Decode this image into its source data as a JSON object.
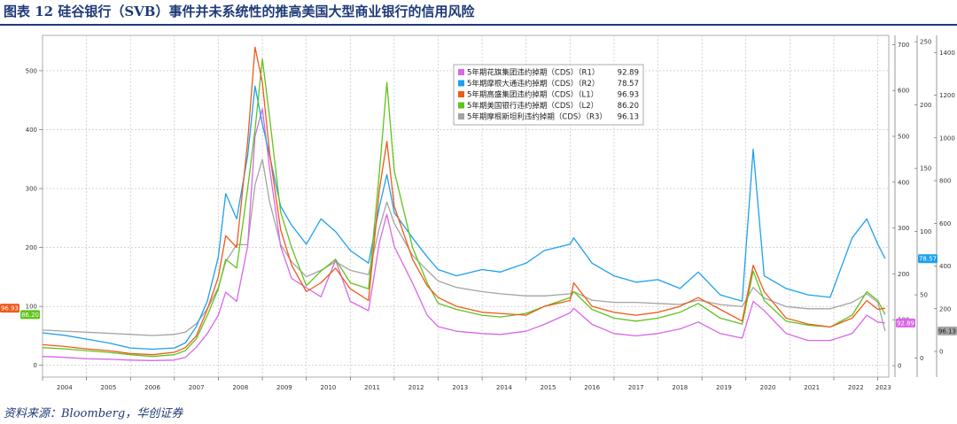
{
  "title": "图表 12  硅谷银行（SVB）事件并未系统性的推高美国大型商业银行的信用风险",
  "source": "资料来源：Bloomberg，华创证券",
  "chart_data": {
    "type": "line",
    "x": [
      "2004-01",
      "2004-07",
      "2005-01",
      "2005-07",
      "2006-01",
      "2006-07",
      "2007-01",
      "2007-04",
      "2007-07",
      "2007-10",
      "2008-01",
      "2008-03",
      "2008-06",
      "2008-09",
      "2008-11",
      "2009-01",
      "2009-03",
      "2009-06",
      "2009-09",
      "2010-01",
      "2010-05",
      "2010-09",
      "2011-01",
      "2011-06",
      "2011-09",
      "2011-11",
      "2012-01",
      "2012-06",
      "2012-10",
      "2013-01",
      "2013-06",
      "2014-01",
      "2014-06",
      "2015-01",
      "2015-06",
      "2016-01",
      "2016-02",
      "2016-07",
      "2017-01",
      "2017-07",
      "2018-01",
      "2018-07",
      "2018-12",
      "2019-06",
      "2019-12",
      "2020-03",
      "2020-06",
      "2020-12",
      "2021-06",
      "2021-12",
      "2022-06",
      "2022-10",
      "2023-01",
      "2023-03"
    ],
    "series": [
      {
        "name": "5年期花旗集团违约掉期（CDS）（R1）",
        "last": "92.89",
        "axis": "R1",
        "color": "#d966e8",
        "values": [
          20,
          18,
          15,
          14,
          12,
          11,
          12,
          18,
          40,
          70,
          110,
          160,
          140,
          260,
          500,
          560,
          430,
          260,
          190,
          170,
          150,
          230,
          140,
          120,
          270,
          330,
          260,
          180,
          110,
          85,
          75,
          70,
          68,
          75,
          90,
          115,
          125,
          90,
          70,
          65,
          70,
          80,
          95,
          70,
          60,
          140,
          120,
          70,
          55,
          55,
          70,
          110,
          95,
          92.89
        ]
      },
      {
        "name": "5年期摩根大通违约掉期（CDS）（R2）",
        "last": "78.57",
        "axis": "R2",
        "color": "#1ea0ee",
        "values": [
          20,
          18,
          15,
          12,
          8,
          7,
          8,
          12,
          25,
          45,
          80,
          130,
          110,
          160,
          215,
          185,
          160,
          120,
          105,
          90,
          110,
          100,
          85,
          75,
          120,
          145,
          115,
          95,
          80,
          70,
          65,
          70,
          68,
          75,
          85,
          90,
          95,
          75,
          65,
          60,
          62,
          55,
          68,
          50,
          45,
          165,
          65,
          55,
          50,
          48,
          95,
          110,
          90,
          78.57
        ]
      },
      {
        "name": "5年期高盛集团违约掉期（CDS）（L1）",
        "last": "96.93",
        "axis": "L1",
        "color": "#ee5a1a",
        "values": [
          35,
          32,
          28,
          25,
          20,
          18,
          22,
          30,
          50,
          95,
          150,
          220,
          200,
          380,
          540,
          480,
          360,
          230,
          170,
          125,
          140,
          165,
          130,
          110,
          300,
          380,
          270,
          180,
          135,
          115,
          100,
          90,
          88,
          85,
          100,
          110,
          140,
          100,
          90,
          85,
          90,
          100,
          115,
          95,
          75,
          170,
          125,
          80,
          70,
          65,
          80,
          110,
          95,
          96.93
        ]
      },
      {
        "name": "5年期美国银行违约掉期（CDS）（L2）",
        "last": "86.20",
        "axis": "L2",
        "color": "#5ec41c",
        "values": [
          30,
          28,
          25,
          22,
          18,
          15,
          18,
          25,
          45,
          85,
          130,
          180,
          165,
          300,
          400,
          520,
          420,
          260,
          200,
          135,
          160,
          180,
          140,
          130,
          330,
          480,
          330,
          200,
          140,
          105,
          95,
          85,
          82,
          88,
          100,
          115,
          125,
          95,
          80,
          75,
          80,
          90,
          105,
          80,
          70,
          160,
          110,
          75,
          68,
          65,
          85,
          125,
          110,
          86.2
        ]
      },
      {
        "name": "5年期摩根斯坦利违约掉期（CDS）（R3）",
        "last": "96.13",
        "axis": "R3",
        "color": "#a4a4a4",
        "values": [
          100,
          95,
          90,
          85,
          80,
          75,
          80,
          90,
          130,
          200,
          300,
          420,
          500,
          500,
          780,
          900,
          700,
          500,
          420,
          350,
          380,
          420,
          380,
          360,
          580,
          700,
          600,
          450,
          380,
          330,
          300,
          280,
          270,
          260,
          260,
          270,
          280,
          240,
          230,
          230,
          225,
          220,
          240,
          220,
          210,
          300,
          250,
          210,
          200,
          200,
          230,
          270,
          230,
          96.13
        ]
      }
    ],
    "axes": {
      "L1": {
        "ticks": [
          0,
          100,
          200,
          300,
          400,
          500
        ],
        "range": [
          -20,
          560
        ]
      },
      "L2": {
        "ticks": [
          0,
          100,
          200,
          300,
          400,
          500
        ],
        "range": [
          -20,
          560
        ]
      },
      "R1": {
        "ticks": [
          0,
          100,
          200,
          300,
          400,
          500,
          600,
          700
        ],
        "range": [
          -25,
          720
        ]
      },
      "R2": {
        "ticks": [
          0,
          50,
          100,
          150,
          200,
          250
        ],
        "range": [
          -15,
          255
        ]
      },
      "R3": {
        "ticks": [
          0,
          200,
          400,
          600,
          800,
          1000,
          1200,
          1400
        ],
        "range": [
          -120,
          1480
        ]
      }
    },
    "x_ticks": [
      "2004",
      "2005",
      "2006",
      "2007",
      "2008",
      "2009",
      "2010",
      "2011",
      "2012",
      "2013",
      "2014",
      "2015",
      "2016",
      "2017",
      "2018",
      "2019",
      "2020",
      "2021",
      "2022",
      "2023"
    ],
    "grid": true,
    "legend_position": "top-right"
  }
}
